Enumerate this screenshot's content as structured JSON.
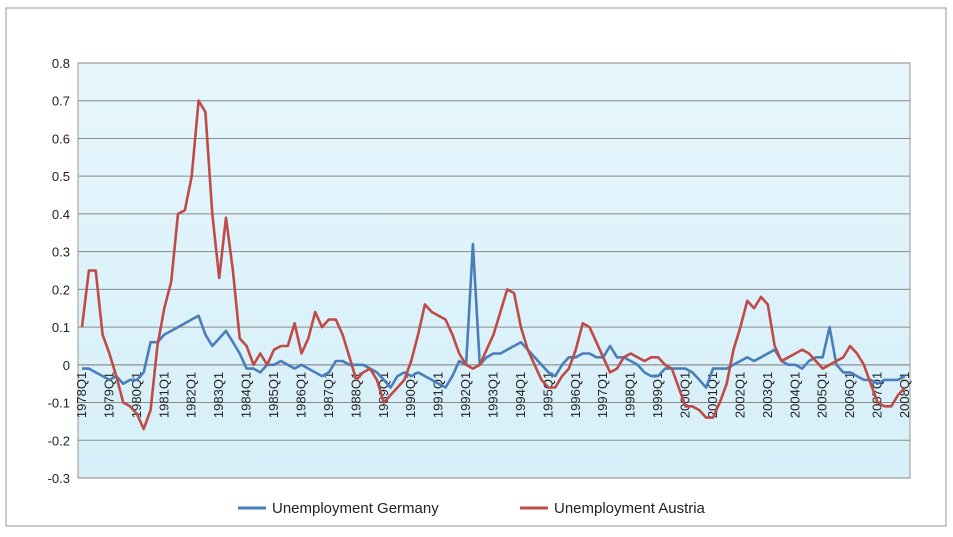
{
  "chart_data": {
    "type": "line",
    "categories": [
      "1978Q1",
      null,
      null,
      null,
      "1979Q1",
      null,
      null,
      null,
      "1980Q1",
      null,
      null,
      null,
      "1981Q1",
      null,
      null,
      null,
      "1982Q1",
      null,
      null,
      null,
      "1983Q1",
      null,
      null,
      null,
      "1984Q1",
      null,
      null,
      null,
      "1985Q1",
      null,
      null,
      null,
      "1986Q1",
      null,
      null,
      null,
      "1987Q1",
      null,
      null,
      null,
      "1988Q1",
      null,
      null,
      null,
      "1989Q1",
      null,
      null,
      null,
      "1990Q1",
      null,
      null,
      null,
      "1991Q1",
      null,
      null,
      null,
      "1992Q1",
      null,
      null,
      null,
      "1993Q1",
      null,
      null,
      null,
      "1994Q1",
      null,
      null,
      null,
      "1995Q1",
      null,
      null,
      null,
      "1996Q1",
      null,
      null,
      null,
      "1997Q1",
      null,
      null,
      null,
      "1998Q1",
      null,
      null,
      null,
      "1999Q1",
      null,
      null,
      null,
      "2000Q1",
      null,
      null,
      null,
      "2001Q1",
      null,
      null,
      null,
      "2002Q1",
      null,
      null,
      null,
      "2003Q1",
      null,
      null,
      null,
      "2004Q1",
      null,
      null,
      null,
      "2005Q1",
      null,
      null,
      null,
      "2006Q1",
      null,
      null,
      null,
      "2007Q1",
      null,
      null,
      null,
      "2008Q1"
    ],
    "series": [
      {
        "name": "Unemployment Germany",
        "color": "#4a7ebb",
        "values": [
          -0.01,
          -0.01,
          -0.02,
          -0.03,
          -0.04,
          -0.03,
          -0.05,
          -0.04,
          -0.04,
          -0.02,
          0.06,
          0.06,
          0.08,
          0.09,
          0.1,
          0.11,
          0.12,
          0.13,
          0.08,
          0.05,
          0.07,
          0.09,
          0.06,
          0.03,
          -0.01,
          -0.01,
          -0.02,
          0.0,
          0.0,
          0.01,
          0.0,
          -0.01,
          0.0,
          -0.01,
          -0.02,
          -0.03,
          -0.02,
          0.01,
          0.01,
          0.0,
          0.0,
          0.0,
          -0.01,
          -0.02,
          -0.04,
          -0.06,
          -0.03,
          -0.02,
          -0.03,
          -0.02,
          -0.03,
          -0.04,
          -0.05,
          -0.06,
          -0.03,
          0.01,
          0.0,
          0.32,
          0.0,
          0.02,
          0.03,
          0.03,
          0.04,
          0.05,
          0.06,
          0.04,
          0.02,
          0.0,
          -0.02,
          -0.03,
          0.0,
          0.02,
          0.02,
          0.03,
          0.03,
          0.02,
          0.02,
          0.05,
          0.02,
          0.02,
          0.01,
          0.0,
          -0.02,
          -0.03,
          -0.03,
          -0.01,
          -0.01,
          -0.01,
          -0.01,
          -0.02,
          -0.04,
          -0.06,
          -0.01,
          -0.01,
          -0.01,
          0.0,
          0.01,
          0.02,
          0.01,
          0.02,
          0.03,
          0.04,
          0.01,
          0.0,
          0.0,
          -0.01,
          0.01,
          0.02,
          0.02,
          0.1,
          0.0,
          -0.02,
          -0.02,
          -0.03,
          -0.04,
          -0.04,
          -0.05,
          -0.04,
          -0.04,
          -0.04,
          -0.03
        ]
      },
      {
        "name": "Unemployment Austria",
        "color": "#be4b48",
        "values": [
          0.1,
          0.25,
          0.25,
          0.08,
          0.03,
          -0.03,
          -0.1,
          -0.11,
          -0.13,
          -0.17,
          -0.12,
          0.05,
          0.15,
          0.22,
          0.4,
          0.41,
          0.5,
          0.7,
          0.67,
          0.4,
          0.23,
          0.39,
          0.25,
          0.07,
          0.05,
          0.0,
          0.03,
          0.0,
          0.04,
          0.05,
          0.05,
          0.11,
          0.03,
          0.07,
          0.14,
          0.1,
          0.12,
          0.12,
          0.08,
          0.02,
          -0.04,
          -0.02,
          -0.01,
          -0.04,
          -0.1,
          -0.08,
          -0.06,
          -0.04,
          0.01,
          0.08,
          0.16,
          0.14,
          0.13,
          0.12,
          0.08,
          0.03,
          0.0,
          -0.01,
          0.0,
          0.04,
          0.08,
          0.14,
          0.2,
          0.19,
          0.1,
          0.04,
          0.0,
          -0.04,
          -0.06,
          -0.06,
          -0.03,
          -0.01,
          0.04,
          0.11,
          0.1,
          0.06,
          0.02,
          -0.02,
          -0.01,
          0.02,
          0.03,
          0.02,
          0.01,
          0.02,
          0.02,
          0.0,
          -0.01,
          -0.06,
          -0.11,
          -0.11,
          -0.12,
          -0.14,
          -0.14,
          -0.1,
          -0.05,
          0.04,
          0.1,
          0.17,
          0.15,
          0.18,
          0.16,
          0.05,
          0.01,
          0.02,
          0.03,
          0.04,
          0.03,
          0.01,
          -0.01,
          0.0,
          0.01,
          0.02,
          0.05,
          0.03,
          0.0,
          -0.05,
          -0.1,
          -0.11,
          -0.11,
          -0.08,
          -0.06
        ]
      }
    ],
    "ylim": [
      -0.3,
      0.8
    ],
    "yticks": [
      -0.3,
      -0.2,
      -0.1,
      0,
      0.1,
      0.2,
      0.3,
      0.4,
      0.5,
      0.6,
      0.7,
      0.8
    ],
    "grid": true
  }
}
